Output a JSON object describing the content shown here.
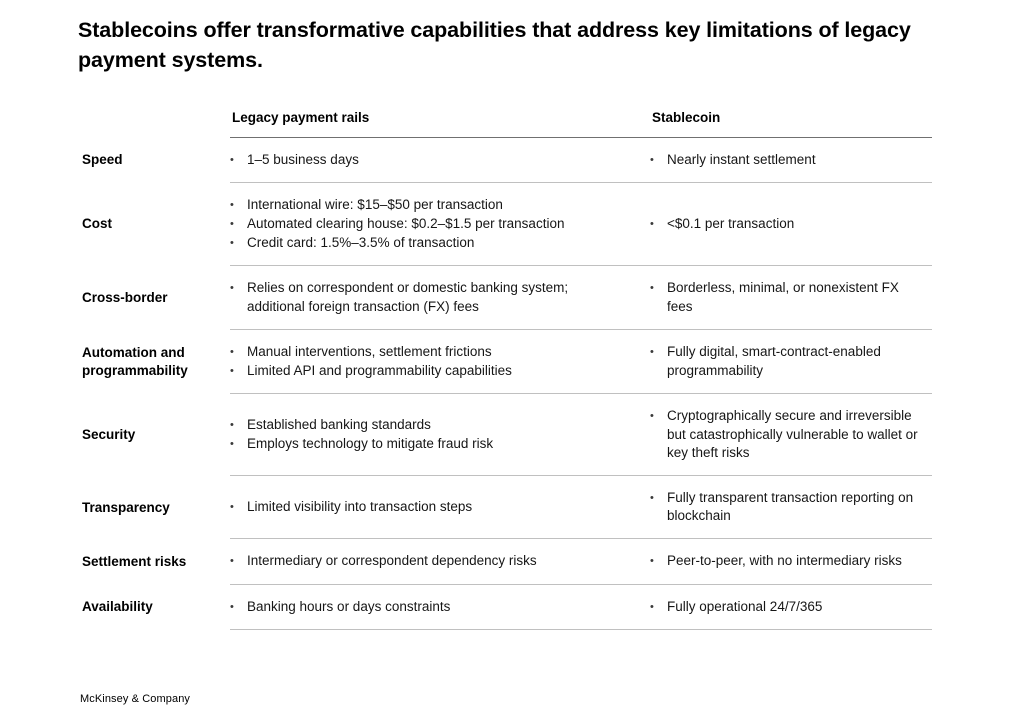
{
  "title": "Stablecoins offer transformative capabilities that address key limitations of legacy payment systems.",
  "table": {
    "columns": [
      "Legacy payment rails",
      "Stablecoin"
    ],
    "rows": [
      {
        "label": "Speed",
        "legacy": [
          "1–5 business days"
        ],
        "stablecoin": [
          "Nearly instant settlement"
        ]
      },
      {
        "label": "Cost",
        "legacy": [
          "International wire: $15–$50 per transaction",
          "Automated clearing house: $0.2–$1.5 per transaction",
          "Credit card: 1.5%–3.5% of transaction"
        ],
        "stablecoin": [
          "<$0.1 per transaction"
        ]
      },
      {
        "label": "Cross-border",
        "legacy": [
          "Relies on correspondent or domestic banking system; additional foreign transaction (FX) fees"
        ],
        "stablecoin": [
          "Borderless, minimal, or nonexistent FX fees"
        ]
      },
      {
        "label": "Automation and programmability",
        "legacy": [
          "Manual interventions, settlement frictions",
          "Limited API and programmability capabilities"
        ],
        "stablecoin": [
          "Fully digital, smart-contract-enabled programmability"
        ]
      },
      {
        "label": "Security",
        "legacy": [
          "Established banking standards",
          "Employs technology to mitigate fraud risk"
        ],
        "stablecoin": [
          "Cryptographically secure and irreversible but catastrophically vulnerable to wallet or key theft risks"
        ]
      },
      {
        "label": "Transparency",
        "legacy": [
          "Limited visibility into transaction steps"
        ],
        "stablecoin": [
          "Fully transparent transaction reporting on blockchain"
        ]
      },
      {
        "label": "Settlement risks",
        "legacy": [
          "Intermediary or correspondent dependency risks"
        ],
        "stablecoin": [
          "Peer-to-peer, with no intermediary risks"
        ]
      },
      {
        "label": "Availability",
        "legacy": [
          "Banking hours or days constraints"
        ],
        "stablecoin": [
          "Fully operational 24/7/365"
        ]
      }
    ]
  },
  "footer": "McKinsey & Company"
}
